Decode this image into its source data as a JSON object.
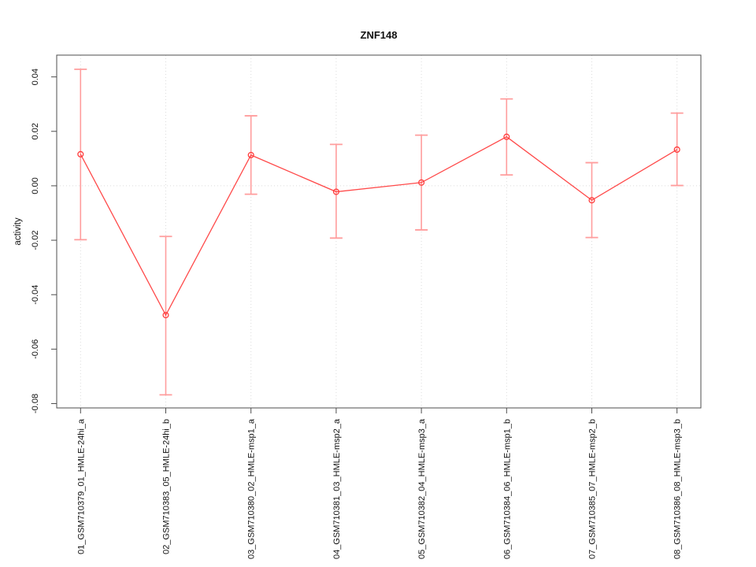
{
  "page": {
    "background_color": "#ffffff"
  },
  "chart_data": {
    "type": "line",
    "title": "ZNF148",
    "xlabel": "",
    "ylabel": "activity",
    "categories": [
      "01_GSM710379_01_HMLE-24hi_a",
      "02_GSM710383_05_HMLE-24hi_b",
      "03_GSM710380_02_HMLE-msp1_a",
      "04_GSM710381_03_HMLE-msp2_a",
      "05_GSM710382_04_HMLE-msp3_a",
      "06_GSM710384_06_HMLE-msp1_b",
      "07_GSM710385_07_HMLE-msp2_b",
      "08_GSM710386_08_HMLE-msp3_b"
    ],
    "series": [
      {
        "name": "ZNF148 activity",
        "values": [
          0.0116,
          -0.0475,
          0.0113,
          -0.0022,
          0.0012,
          0.018,
          -0.0053,
          0.0133
        ],
        "error_low": [
          -0.0198,
          -0.0768,
          -0.0031,
          -0.0192,
          -0.0162,
          0.004,
          -0.019,
          0.0001
        ],
        "error_high": [
          0.0428,
          -0.0186,
          0.0257,
          0.0152,
          0.0186,
          0.0319,
          0.0085,
          0.0267
        ]
      }
    ],
    "y_ticks": [
      "0.04",
      "0.02",
      "0.00",
      "-0.02",
      "-0.04",
      "-0.06",
      "-0.08"
    ],
    "ylim": [
      -0.0816,
      0.048
    ],
    "reference_line_y": 0,
    "grid": {
      "vertical_at_categories": true,
      "style": "dotted"
    },
    "legend": "none",
    "marker": "open-circle",
    "colors": {
      "series_line": "#ff4a4a",
      "marker_stroke": "#ff3d3d",
      "error_bar": "#ff9d9d",
      "grid_line": "#dcdcdc",
      "frame": "#4d4d4d",
      "text": "#111111"
    }
  }
}
